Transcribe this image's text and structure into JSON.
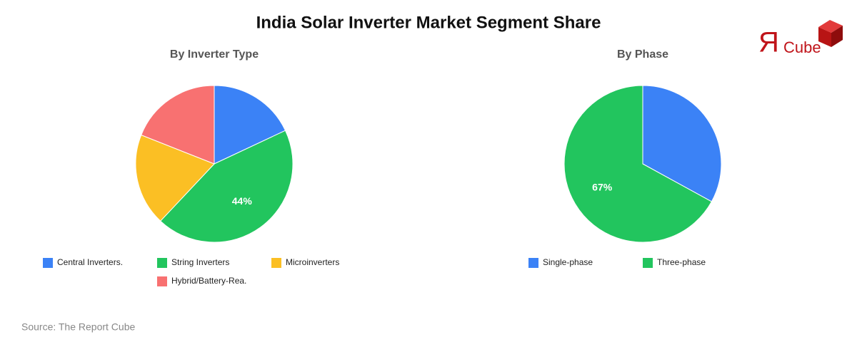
{
  "title": "India Solar Inverter Market Segment Share",
  "source": "Source: The Report Cube",
  "logo": {
    "mark": "Я",
    "text": "Cube"
  },
  "chart_data": [
    {
      "type": "pie",
      "title": "By Inverter Type",
      "categories": [
        "Central Inverters.",
        "String Inverters",
        "Microinverters",
        "Hybrid/Battery-Rea."
      ],
      "values": [
        18,
        44,
        19,
        19
      ],
      "value_labels": [
        null,
        "44%",
        null,
        null
      ],
      "colors": [
        "#3b82f6",
        "#22c55e",
        "#fbbf24",
        "#f87171"
      ]
    },
    {
      "type": "pie",
      "title": "By Phase",
      "categories": [
        "Single-phase",
        "Three-phase"
      ],
      "values": [
        33,
        67
      ],
      "value_labels": [
        null,
        "67%"
      ],
      "colors": [
        "#3b82f6",
        "#22c55e"
      ]
    }
  ]
}
